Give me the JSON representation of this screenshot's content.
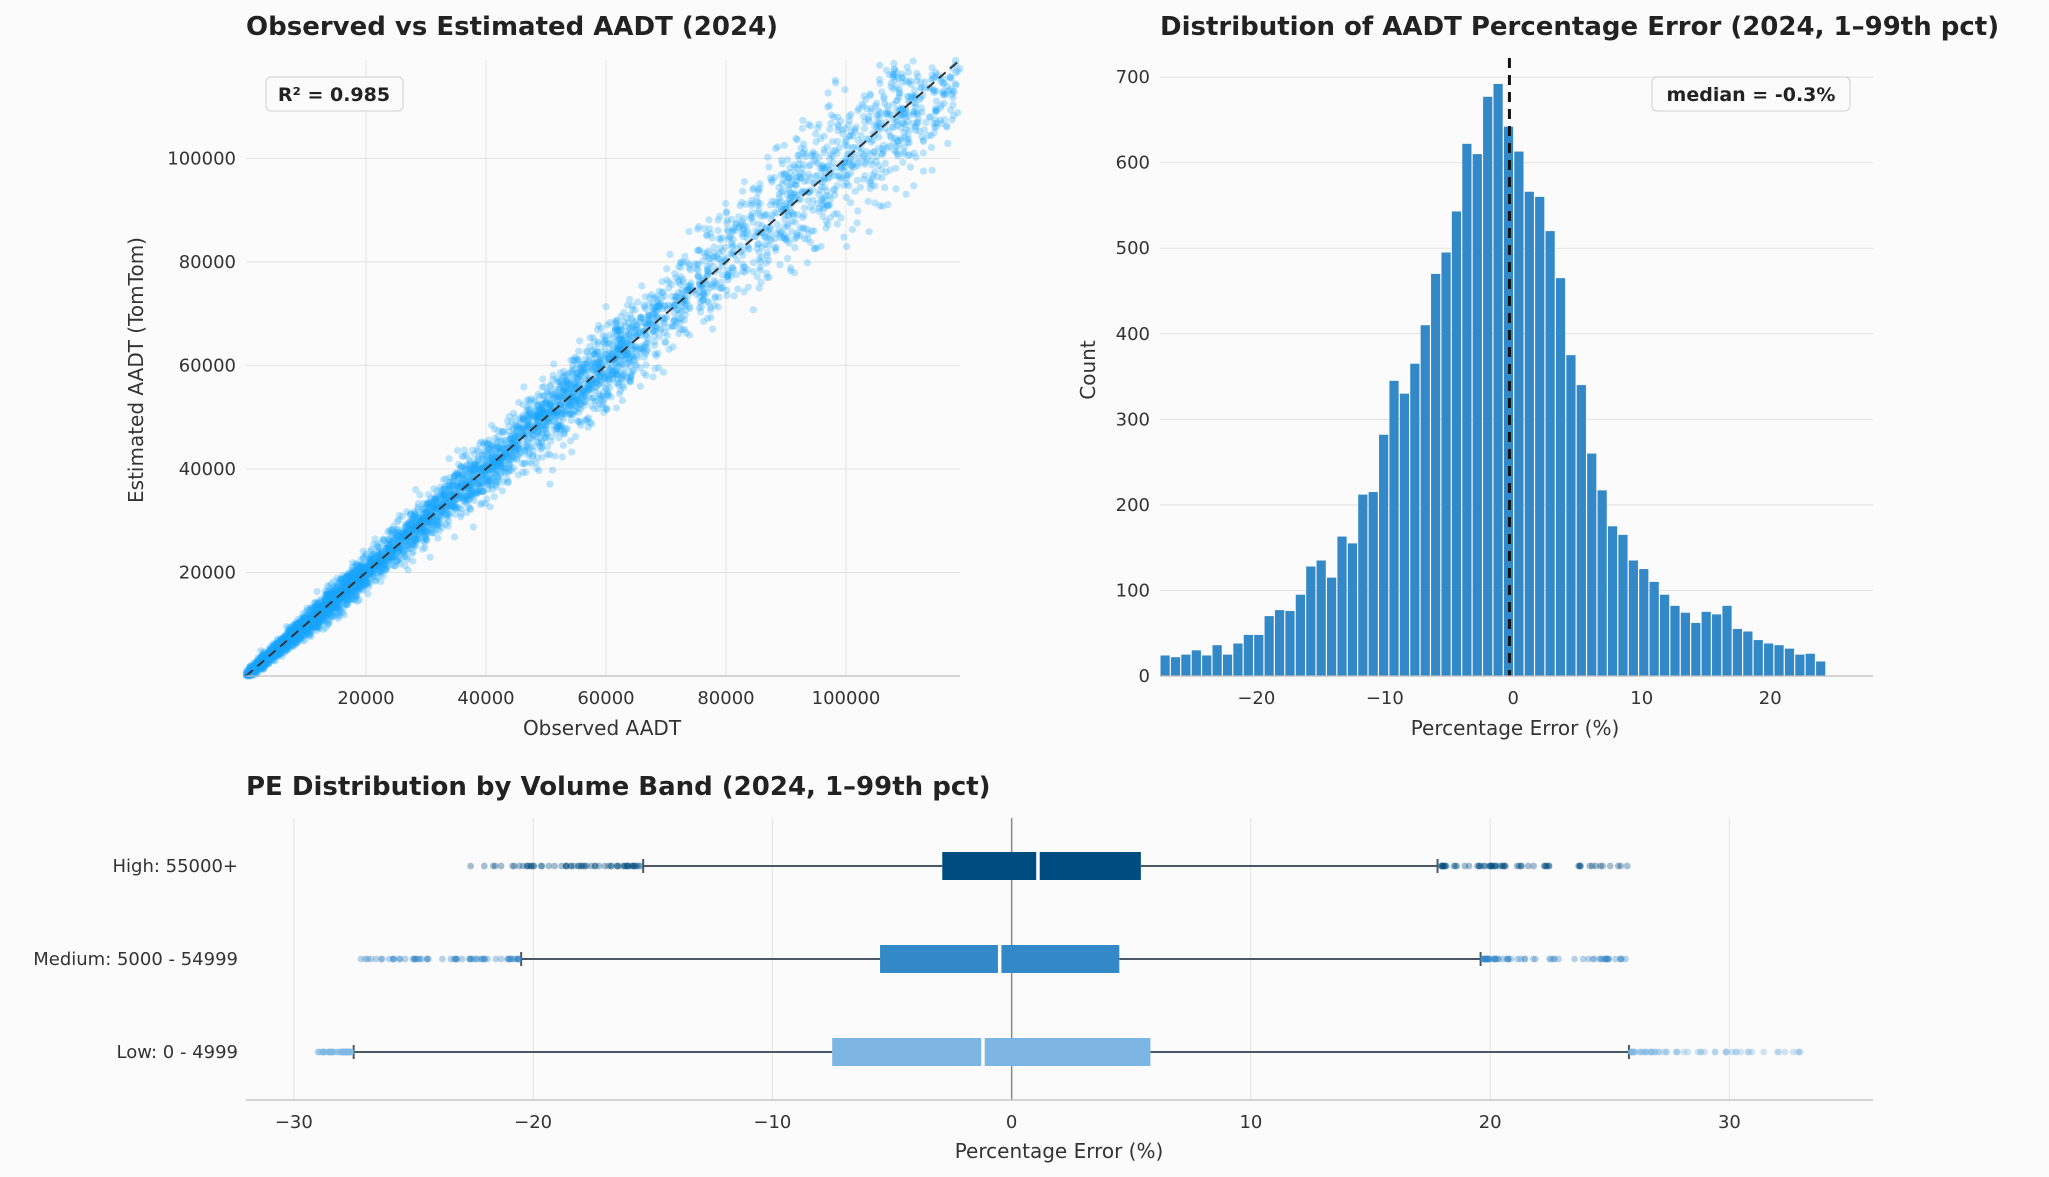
{
  "chart_data": [
    {
      "type": "scatter",
      "title": "Observed vs Estimated AADT (2024)",
      "xlabel": "Observed AADT",
      "ylabel": "Estimated AADT (TomTom)",
      "xlim": [
        0,
        119000
      ],
      "ylim": [
        0,
        119000
      ],
      "xticks": [
        20000,
        40000,
        60000,
        80000,
        100000
      ],
      "yticks": [
        20000,
        40000,
        60000,
        80000,
        100000
      ],
      "annotation": "R² = 0.985",
      "reference_line": "y = x",
      "point_color": "#1aa7ff",
      "grid": true,
      "trend": {
        "slope": 1.0,
        "r_squared": 0.985,
        "n_points_approx": 5000
      }
    },
    {
      "type": "bar",
      "title": "Distribution of AADT Percentage Error (2024, 1–99th pct)",
      "xlabel": "Percentage Error (%)",
      "ylabel": "Count",
      "xlim": [
        -27.5,
        28
      ],
      "ylim": [
        0,
        720
      ],
      "xticks": [
        -20,
        -10,
        0,
        10,
        20
      ],
      "yticks": [
        0,
        100,
        200,
        300,
        400,
        500,
        600,
        700
      ],
      "bin_start": -27.5,
      "bin_width": 0.81,
      "values": [
        24,
        22,
        25,
        30,
        24,
        36,
        25,
        38,
        48,
        48,
        70,
        77,
        76,
        95,
        128,
        135,
        115,
        163,
        155,
        212,
        215,
        282,
        345,
        330,
        365,
        410,
        470,
        495,
        543,
        622,
        610,
        677,
        692,
        642,
        613,
        566,
        560,
        520,
        465,
        375,
        340,
        260,
        217,
        175,
        165,
        135,
        125,
        110,
        95,
        82,
        74,
        62,
        75,
        72,
        82,
        55,
        52,
        42,
        38,
        36,
        32,
        25,
        26,
        17
      ],
      "bar_color": "#3388c8",
      "annotation": "median = -0.3%",
      "median": -0.3,
      "grid": true
    },
    {
      "type": "boxplot",
      "title": "PE Distribution by Volume Band (2024, 1–99th pct)",
      "xlabel": "Percentage Error (%)",
      "xlim": [
        -32,
        36
      ],
      "xticks": [
        -30,
        -20,
        -10,
        0,
        10,
        20,
        30
      ],
      "categories": [
        "High: 55000+",
        "Medium: 5000 - 54999",
        "Low: 0 - 4999"
      ],
      "boxes": [
        {
          "name": "High: 55000+",
          "whisker_low": -15.4,
          "q1": -2.9,
          "median": 1.1,
          "q3": 5.4,
          "whisker_high": 17.8,
          "outlier_low": [
            -23.0,
            -15.5
          ],
          "outlier_high": [
            17.9,
            26.2
          ],
          "color": "#004c80"
        },
        {
          "name": "Medium: 5000 - 54999",
          "whisker_low": -20.5,
          "q1": -5.5,
          "median": -0.5,
          "q3": 4.5,
          "whisker_high": 19.6,
          "outlier_low": [
            -27.2,
            -20.6
          ],
          "outlier_high": [
            19.7,
            25.7
          ],
          "color": "#3388c8"
        },
        {
          "name": "Low: 0 - 4999",
          "whisker_low": -27.5,
          "q1": -7.5,
          "median": -1.2,
          "q3": 5.8,
          "whisker_high": 25.8,
          "outlier_low": [
            -29.0,
            -27.6
          ],
          "outlier_high": [
            25.9,
            33.0
          ],
          "color": "#7db6e3"
        }
      ],
      "grid": true
    }
  ]
}
